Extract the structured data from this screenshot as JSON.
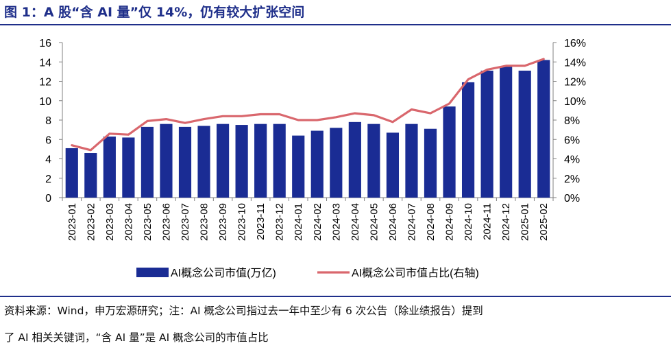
{
  "title": "图 1：A 股“含 AI 量”仅 14%，仍有较大扩张空间",
  "source_line1": "资料来源：Wind，申万宏源研究；注：AI 概念公司指过去一年中至少有 6 次公告（除业绩报告）提到",
  "source_line2": "了 AI 相关关键词，“含 AI 量”是 AI 概念公司的市值占比",
  "colors": {
    "bar": "#1a2c94",
    "line": "#d9676d",
    "title": "#1f2f8a"
  },
  "chart_data": {
    "type": "bar+line",
    "categories": [
      "2023-01",
      "2023-02",
      "2023-03",
      "2023-04",
      "2023-05",
      "2023-06",
      "2023-07",
      "2023-08",
      "2023-09",
      "2023-10",
      "2023-11",
      "2023-12",
      "2024-01",
      "2024-02",
      "2024-03",
      "2024-04",
      "2024-05",
      "2024-06",
      "2024-07",
      "2024-08",
      "2024-09",
      "2024-10",
      "2024-11",
      "2024-12",
      "2025-01",
      "2025-02"
    ],
    "series": [
      {
        "name": "AI概念公司市值(万亿)",
        "type": "bar",
        "axis": "left",
        "values": [
          5.1,
          4.6,
          6.3,
          6.2,
          7.3,
          7.6,
          7.3,
          7.4,
          7.6,
          7.5,
          7.6,
          7.6,
          6.4,
          6.9,
          7.2,
          7.8,
          7.6,
          6.7,
          7.6,
          7.1,
          9.4,
          11.9,
          13.1,
          13.5,
          13.1,
          14.2
        ]
      },
      {
        "name": "AI概念公司市值占比(右轴)",
        "type": "line",
        "axis": "right",
        "values": [
          5.4,
          4.9,
          6.6,
          6.5,
          7.9,
          8.1,
          7.7,
          8.1,
          8.4,
          8.4,
          8.6,
          8.6,
          8.0,
          8.0,
          8.3,
          8.7,
          8.5,
          7.8,
          9.1,
          8.7,
          9.7,
          12.2,
          13.2,
          13.6,
          13.6,
          14.3
        ]
      }
    ],
    "y_left": {
      "min": 0,
      "max": 16,
      "ticks": [
        "0",
        "2",
        "4",
        "6",
        "8",
        "10",
        "12",
        "14",
        "16"
      ]
    },
    "y_right": {
      "min": 0,
      "max": 16,
      "ticks": [
        "0%",
        "2%",
        "4%",
        "6%",
        "8%",
        "10%",
        "12%",
        "14%",
        "16%"
      ]
    },
    "grid": false,
    "legend_position": "bottom"
  }
}
